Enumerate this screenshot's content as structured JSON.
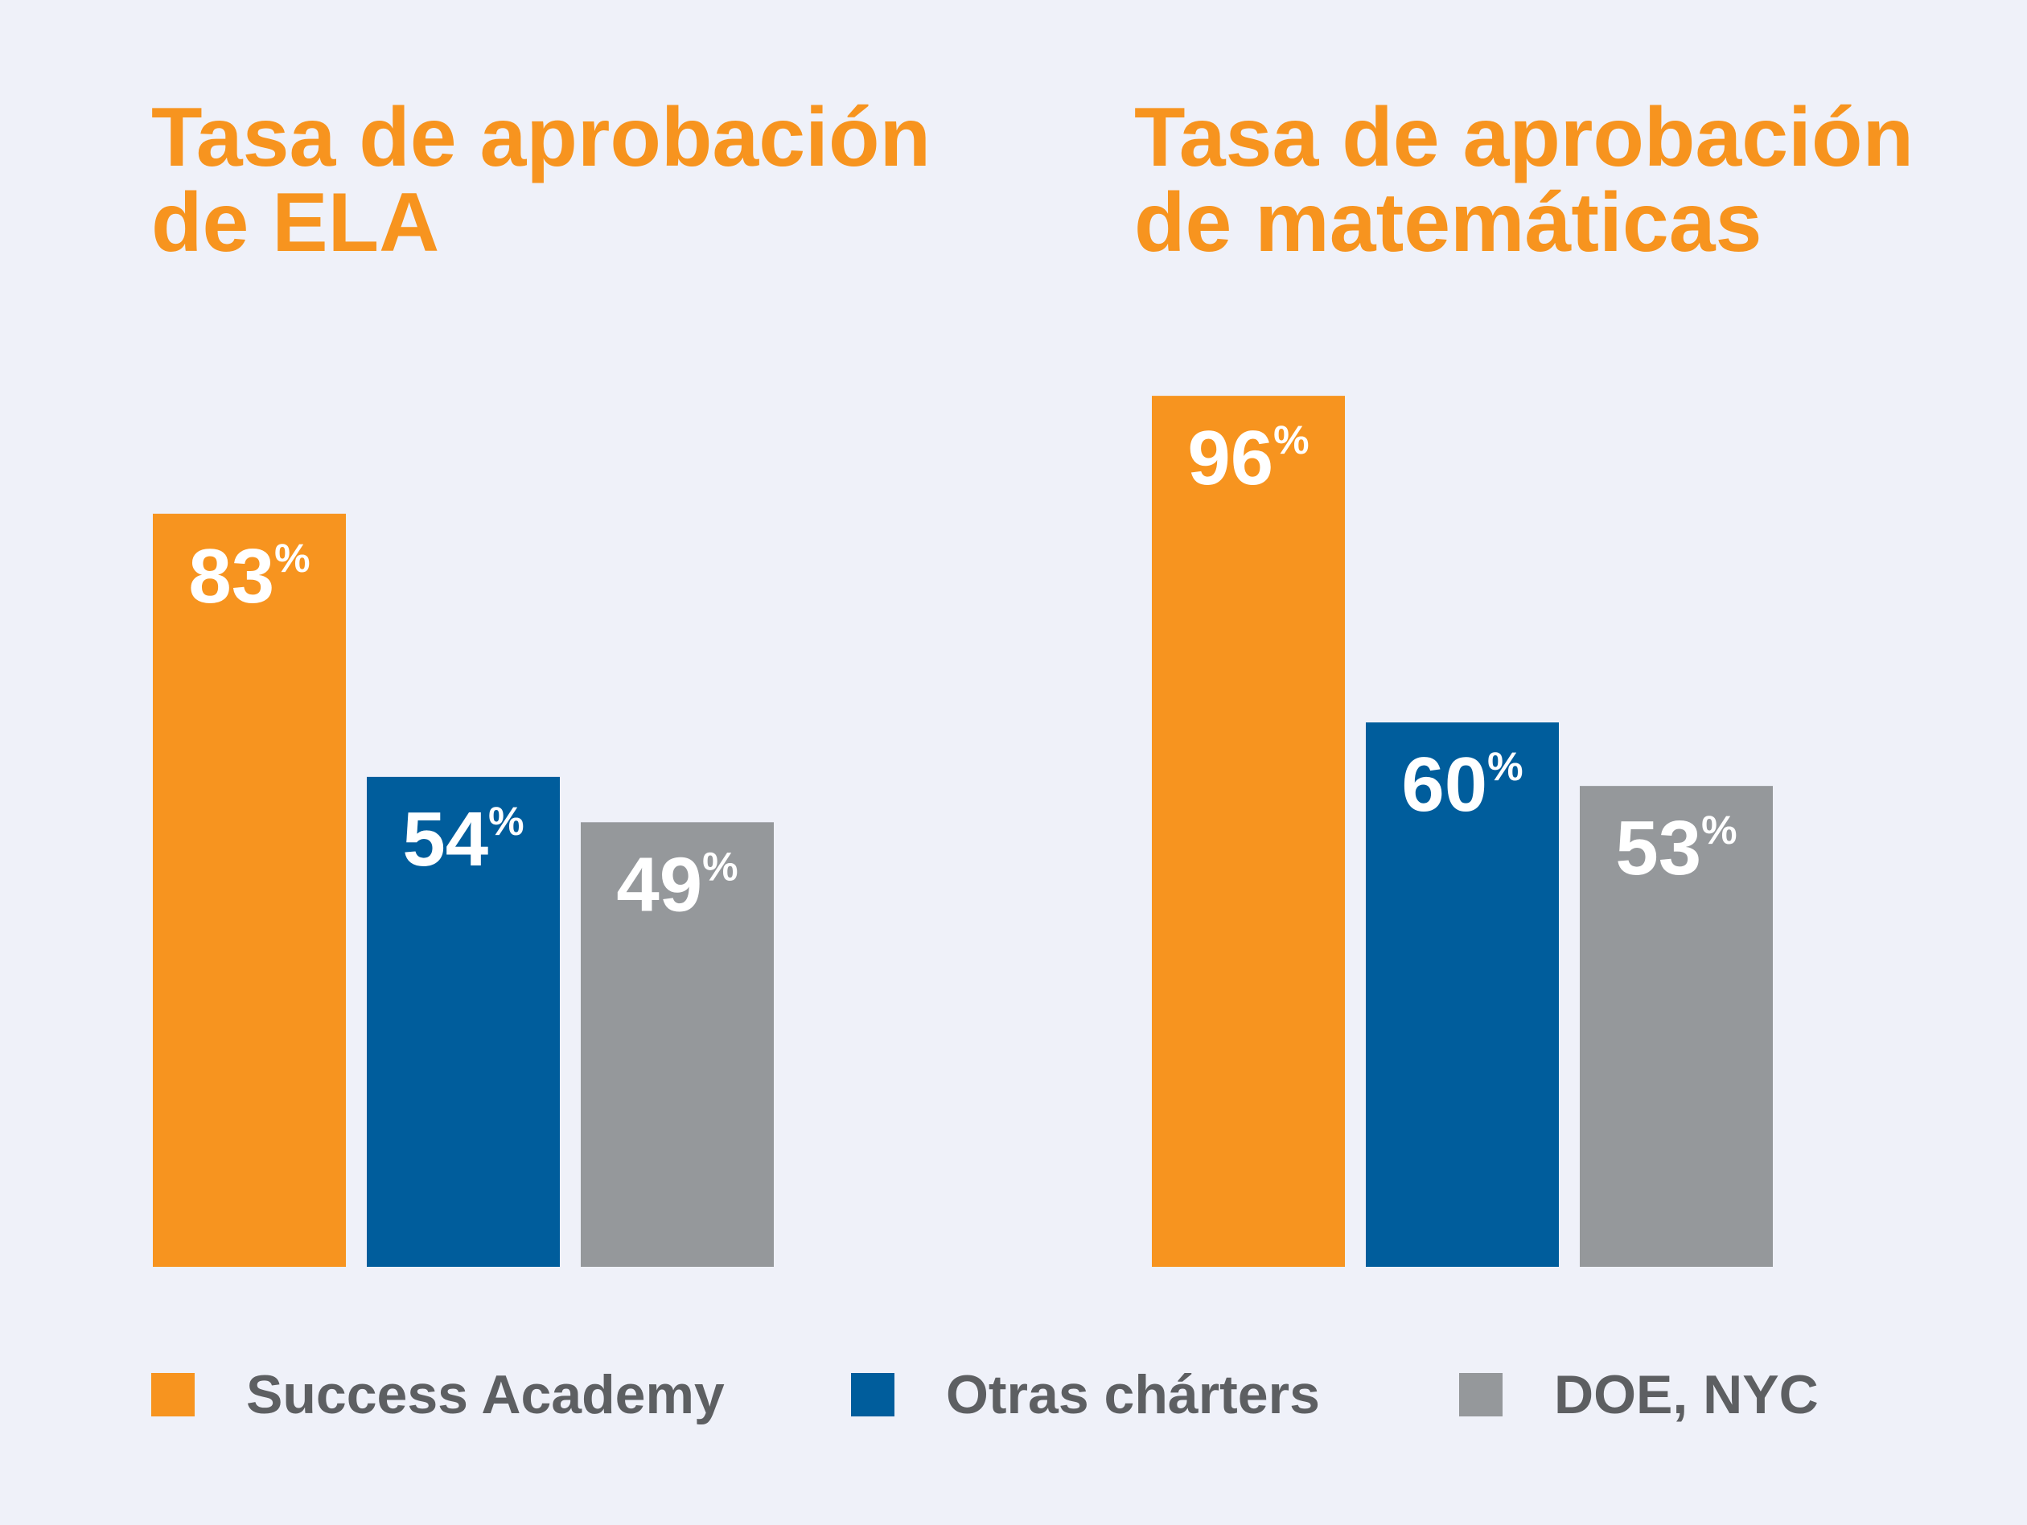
{
  "chart_data": [
    {
      "type": "bar",
      "title_lines": [
        "Tasa de aprobación",
        "de ELA"
      ],
      "categories": [
        "Success Academy",
        "Otras chárters",
        "DOE, NYC"
      ],
      "values": [
        83,
        54,
        49
      ],
      "value_labels": [
        "83",
        "54",
        "49"
      ],
      "unit": "%",
      "ylim": [
        0,
        100
      ],
      "grid": false
    },
    {
      "type": "bar",
      "title_lines": [
        "Tasa de aprobación",
        "de matemáticas"
      ],
      "categories": [
        "Success Academy",
        "Otras chárters",
        "DOE, NYC"
      ],
      "values": [
        96,
        60,
        53
      ],
      "value_labels": [
        "96",
        "60",
        "53"
      ],
      "unit": "%",
      "ylim": [
        0,
        100
      ],
      "grid": false
    }
  ],
  "legend": {
    "placement": "bottom",
    "items": [
      {
        "label": "Success Academy",
        "color": "#f7941f"
      },
      {
        "label": "Otras chárters",
        "color": "#005d9c"
      },
      {
        "label": "DOE, NYC",
        "color": "#95989b"
      }
    ]
  },
  "colors": {
    "background": "#eff1f9",
    "title": "#f7941f",
    "label_text": "#ffffff",
    "legend_text": "#5d5f62"
  }
}
